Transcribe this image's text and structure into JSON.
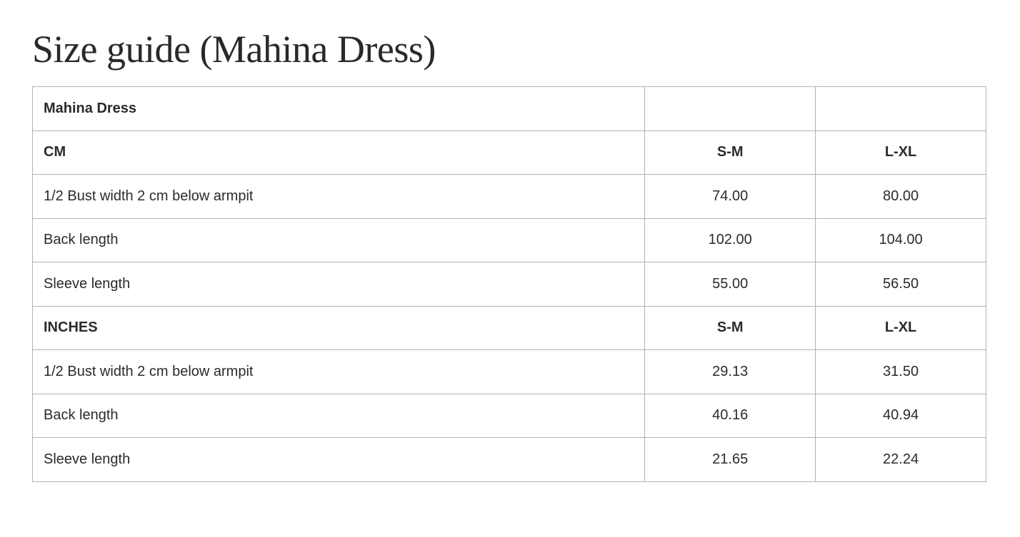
{
  "title": "Size guide (Mahina Dress)",
  "table": {
    "rows": [
      {
        "bold": true,
        "cells": [
          "Mahina Dress",
          "",
          ""
        ]
      },
      {
        "bold": true,
        "cells": [
          "CM",
          "S-M",
          "L-XL"
        ]
      },
      {
        "bold": false,
        "cells": [
          "1/2 Bust width 2 cm below armpit",
          "74.00",
          "80.00"
        ]
      },
      {
        "bold": false,
        "cells": [
          "Back length",
          "102.00",
          "104.00"
        ]
      },
      {
        "bold": false,
        "cells": [
          "Sleeve length",
          "55.00",
          "56.50"
        ]
      },
      {
        "bold": true,
        "cells": [
          "INCHES",
          "S-M",
          "L-XL"
        ]
      },
      {
        "bold": false,
        "cells": [
          "1/2 Bust width 2 cm below armpit",
          "29.13",
          "31.50"
        ]
      },
      {
        "bold": false,
        "cells": [
          "Back length",
          "40.16",
          "40.94"
        ]
      },
      {
        "bold": false,
        "cells": [
          "Sleeve length",
          "21.65",
          "22.24"
        ]
      }
    ]
  }
}
